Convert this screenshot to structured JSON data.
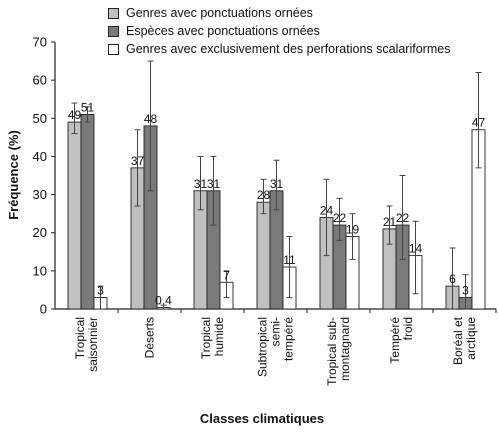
{
  "chart_data": {
    "type": "bar",
    "ylabel": "Fréquence (%)",
    "xlabel": "Classes climatiques",
    "ylim": [
      0,
      70
    ],
    "yticks": [
      0,
      10,
      20,
      30,
      40,
      50,
      60,
      70
    ],
    "grid": false,
    "legend_position": "top",
    "categories": [
      [
        "Tropical",
        "saisonnier"
      ],
      [
        "Déserts"
      ],
      [
        "Tropical",
        "humide"
      ],
      [
        "Subtropical",
        "semi-",
        "tempéré"
      ],
      [
        "Tropical sub-",
        "montagnard"
      ],
      [
        "Tempéré",
        "froid"
      ],
      [
        "Boréal et",
        "arctique"
      ]
    ],
    "series": [
      {
        "name": "Genres avec ponctuations ornées",
        "color": "#c0c0c0",
        "values": [
          49,
          37,
          31,
          28,
          24,
          21,
          6
        ],
        "labels": [
          "49",
          "37",
          "31",
          "28",
          "24",
          "21",
          "6"
        ],
        "errors": [
          [
            46,
            54
          ],
          [
            27,
            47
          ],
          [
            26,
            40
          ],
          [
            25,
            34
          ],
          [
            14,
            34
          ],
          [
            17,
            27
          ],
          [
            0,
            16
          ]
        ]
      },
      {
        "name": "Espèces avec ponctuations ornées",
        "color": "#7a7a7a",
        "values": [
          51,
          48,
          31,
          31,
          22,
          22,
          3
        ],
        "labels": [
          "51",
          "48",
          "31",
          "31",
          "22",
          "22",
          "3"
        ],
        "errors": [
          [
            49,
            53
          ],
          [
            31,
            65
          ],
          [
            22,
            40
          ],
          [
            26,
            39
          ],
          [
            18,
            29
          ],
          [
            13,
            35
          ],
          [
            0,
            9
          ]
        ]
      },
      {
        "name": "Genres avec exclusivement des perforations scalariformes",
        "color": "#ffffff",
        "values": [
          3,
          0.4,
          7,
          11,
          19,
          14,
          47
        ],
        "labels": [
          "3",
          "0.4",
          "7",
          "11",
          "19",
          "14",
          "47"
        ],
        "errors": [
          [
            0,
            6
          ],
          [
            0,
            1
          ],
          [
            3,
            10
          ],
          [
            3,
            19
          ],
          [
            13,
            25
          ],
          [
            4,
            23
          ],
          [
            37,
            62
          ]
        ]
      }
    ]
  }
}
